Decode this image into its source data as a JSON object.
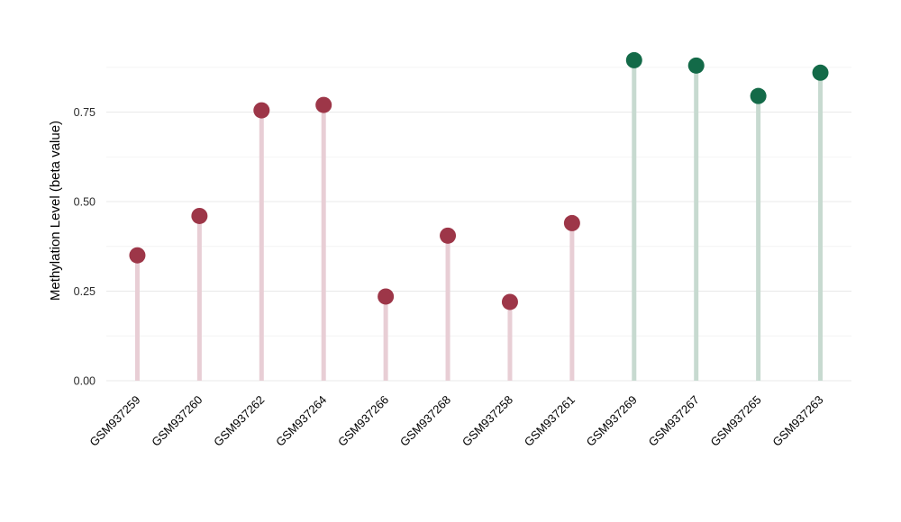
{
  "chart_data": {
    "type": "lollipop",
    "title": "",
    "xlabel": "",
    "ylabel": "Methylation Level (beta value)",
    "ylim": [
      0,
      0.95
    ],
    "yticks": [
      {
        "value": 0.0,
        "label": "0.00"
      },
      {
        "value": 0.25,
        "label": "0.25"
      },
      {
        "value": 0.5,
        "label": "0.50"
      },
      {
        "value": 0.75,
        "label": "0.75"
      }
    ],
    "minor_gridlines": [
      0.125,
      0.375,
      0.625,
      0.875
    ],
    "grid": "horizontal-only",
    "legend_position": "none",
    "categories": [
      "GSM937259",
      "GSM937260",
      "GSM937262",
      "GSM937264",
      "GSM937266",
      "GSM937268",
      "GSM937258",
      "GSM937261",
      "GSM937269",
      "GSM937267",
      "GSM937265",
      "GSM937263"
    ],
    "series": [
      {
        "name": "methylation-beta",
        "values": [
          0.35,
          0.46,
          0.755,
          0.77,
          0.235,
          0.405,
          0.22,
          0.44,
          0.895,
          0.88,
          0.795,
          0.86
        ],
        "groups": [
          "low",
          "low",
          "low",
          "low",
          "low",
          "low",
          "low",
          "low",
          "high",
          "high",
          "high",
          "high"
        ]
      }
    ],
    "group_colors": {
      "low": {
        "dot": "#9d3648",
        "stem": "#e8ced5"
      },
      "high": {
        "dot": "#136a48",
        "stem": "#c7dad0"
      }
    },
    "x_label_rotation_deg": -45
  }
}
